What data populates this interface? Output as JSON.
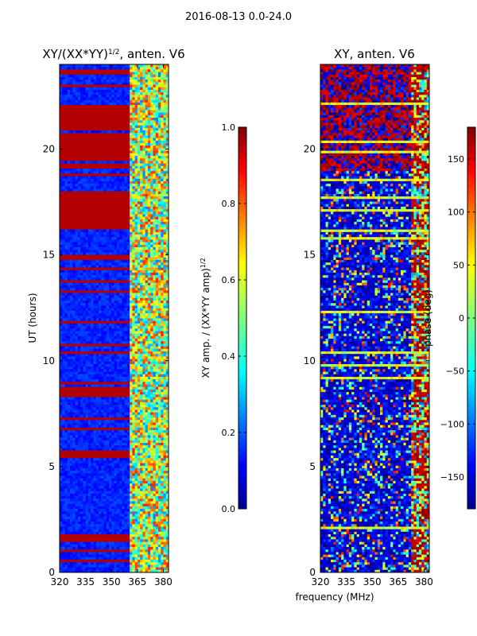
{
  "figure_title": "2016-08-13 0.0-24.0",
  "chart_data": [
    {
      "type": "heatmap",
      "id": "amp",
      "title_main": "XY/(XX*YY)",
      "title_sup": "1/2",
      "title_tail": ", anten. V6",
      "xlabel": "",
      "ylabel": "UT (hours)",
      "xlim": [
        320,
        383
      ],
      "ylim": [
        0,
        24
      ],
      "xticks": [
        320,
        335,
        350,
        365,
        380
      ],
      "yticks": [
        0,
        5,
        10,
        15,
        20
      ],
      "colorbar": {
        "label_main": "XY amp. / (XX*YY amp)",
        "label_sup": "1/2",
        "range": [
          0.0,
          1.0
        ],
        "ticks": [
          "0.0",
          "0.2",
          "0.4",
          "0.6",
          "0.8",
          "1.0"
        ]
      }
    },
    {
      "type": "heatmap",
      "id": "phase",
      "title_main": "XY, anten. V6",
      "xlabel": "frequency (MHz)",
      "ylabel": "",
      "xlim": [
        320,
        383
      ],
      "ylim": [
        0,
        24
      ],
      "xticks": [
        320,
        335,
        350,
        365,
        380
      ],
      "yticks": [
        0,
        5,
        10,
        15,
        20
      ],
      "colorbar": {
        "label_main": "phase (deg)",
        "range": [
          -180,
          180
        ],
        "ticks": [
          "−150",
          "−100",
          "−50",
          "0",
          "50",
          "100",
          "150"
        ]
      }
    }
  ]
}
